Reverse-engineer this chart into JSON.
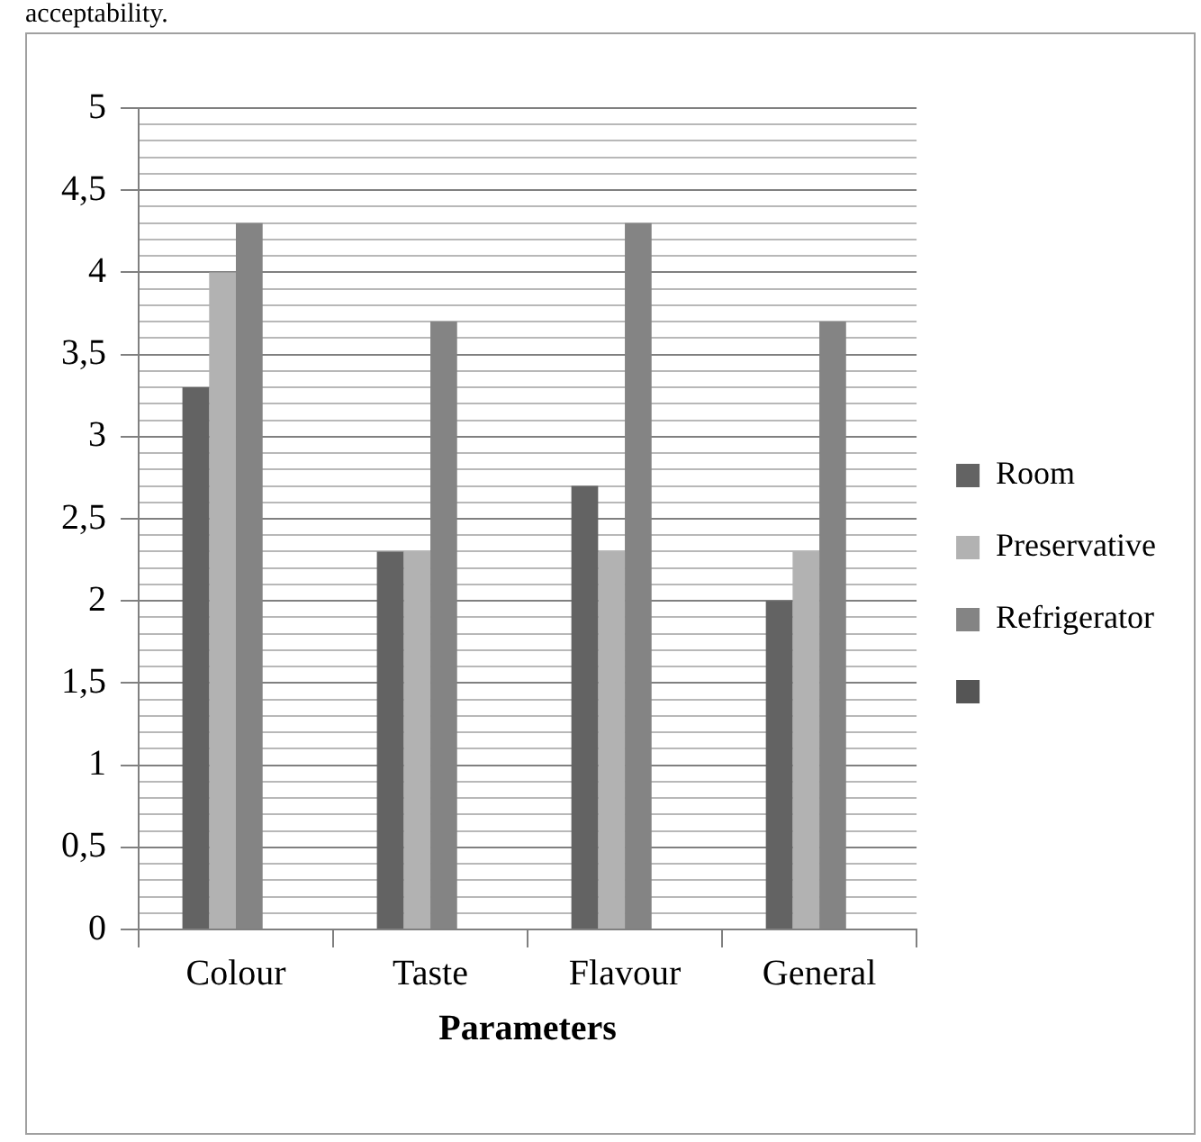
{
  "chart_data": {
    "type": "bar",
    "xlabel": "Parameters",
    "annotations": [
      "acceptability."
    ],
    "categories": [
      "Colour",
      "Taste",
      "Flavour",
      "General"
    ],
    "series": [
      {
        "name": "Room",
        "color": "#636363",
        "values": [
          3.3,
          2.3,
          2.7,
          2.0
        ]
      },
      {
        "name": "Preservative",
        "color": "#b2b2b2",
        "values": [
          4.0,
          2.3,
          2.3,
          2.3
        ]
      },
      {
        "name": "Refrigerator",
        "color": "#848484",
        "values": [
          4.3,
          3.7,
          4.3,
          3.7
        ]
      },
      {
        "color": "#555555",
        "values": [
          null,
          null,
          null,
          null
        ]
      }
    ],
    "ylim": [
      0,
      5
    ],
    "yticks": [
      0,
      {
        "value": 0.1,
        "label": null
      },
      {
        "value": 0.2,
        "label": null
      },
      {
        "value": 0.3,
        "label": null
      },
      {
        "value": 0.4,
        "label": null
      },
      {
        "value": 0.5,
        "label": "0,5"
      },
      {
        "value": 0.6,
        "label": null
      },
      {
        "value": 0.7,
        "label": null
      },
      {
        "value": 0.8,
        "label": null
      },
      {
        "value": 0.9,
        "label": null
      },
      1,
      {
        "value": 1.1,
        "label": null
      },
      {
        "value": 1.2,
        "label": null
      },
      {
        "value": 1.3,
        "label": null
      },
      {
        "value": 1.4,
        "label": null
      },
      {
        "value": 1.5,
        "label": "1,5"
      },
      {
        "value": 1.6,
        "label": null
      },
      {
        "value": 1.7,
        "label": null
      },
      {
        "value": 1.8,
        "label": null
      },
      {
        "value": 1.9,
        "label": null
      },
      2,
      {
        "value": 2.1,
        "label": null
      },
      {
        "value": 2.2,
        "label": null
      },
      {
        "value": 2.3,
        "label": null
      },
      {
        "value": 2.4,
        "label": null
      },
      {
        "value": 2.5,
        "label": "2,5"
      },
      {
        "value": 2.6,
        "label": null
      },
      {
        "value": 2.7,
        "label": null
      },
      {
        "value": 2.8,
        "label": null
      },
      {
        "value": 2.9,
        "label": null
      },
      3,
      {
        "value": 3.1,
        "label": null
      },
      {
        "value": 3.2,
        "label": null
      },
      {
        "value": 3.3,
        "label": null
      },
      {
        "value": 3.4,
        "label": null
      },
      {
        "value": 3.5,
        "label": "3,5"
      },
      {
        "value": 3.6,
        "label": null
      },
      {
        "value": 3.7,
        "label": null
      },
      {
        "value": 3.8,
        "label": null
      },
      {
        "value": 3.9,
        "label": null
      },
      4,
      {
        "value": 4.1,
        "label": null
      },
      {
        "value": 4.2,
        "label": null
      },
      {
        "value": 4.3,
        "label": null
      },
      {
        "value": 4.4,
        "label": null
      },
      {
        "value": 4.5,
        "label": "4,5"
      },
      {
        "value": 4.6,
        "label": null
      },
      {
        "value": 4.7,
        "label": null
      },
      {
        "value": 4.8,
        "label": null
      },
      {
        "value": 4.9,
        "label": null
      },
      5
    ],
    "grid": "y",
    "legend": "right"
  }
}
